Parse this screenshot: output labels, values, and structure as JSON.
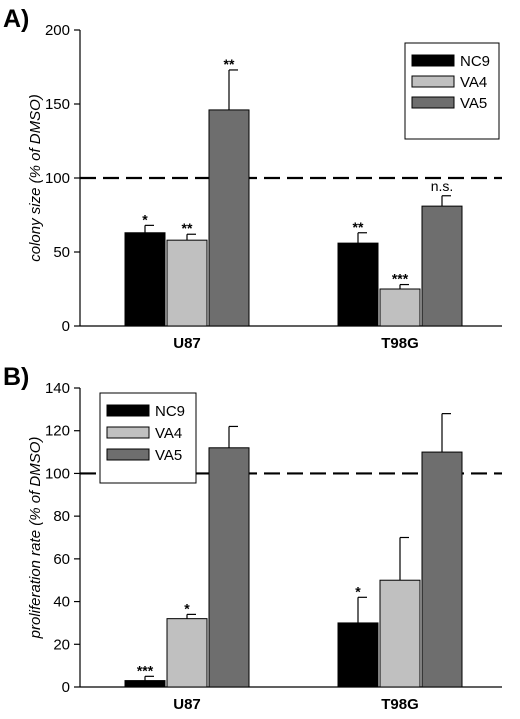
{
  "chart_data": [
    {
      "panel": "A)",
      "type": "bar",
      "categories": [
        "U87",
        "T98G"
      ],
      "ylabel": "colony size (% of DMSO)",
      "ylim": [
        0,
        200
      ],
      "yticks": [
        0,
        50,
        100,
        150,
        200
      ],
      "reference_line": 100,
      "legend_position": "top-right",
      "series": [
        {
          "name": "NC9",
          "color": "#000000",
          "values": [
            63,
            56
          ],
          "errors": [
            5,
            7
          ],
          "significance": [
            "*",
            "**"
          ]
        },
        {
          "name": "VA4",
          "color": "#c0c0c0",
          "values": [
            58,
            25
          ],
          "errors": [
            4,
            3
          ],
          "significance": [
            "**",
            "***"
          ]
        },
        {
          "name": "VA5",
          "color": "#6e6e6e",
          "values": [
            146,
            81
          ],
          "errors": [
            27,
            7
          ],
          "significance": [
            "**",
            "n.s."
          ]
        }
      ]
    },
    {
      "panel": "B)",
      "type": "bar",
      "categories": [
        "U87",
        "T98G"
      ],
      "ylabel": "proliferation rate (% of DMSO)",
      "ylim": [
        0,
        140
      ],
      "yticks": [
        0,
        20,
        40,
        60,
        80,
        100,
        120,
        140
      ],
      "reference_line": 100,
      "legend_position": "top-left",
      "series": [
        {
          "name": "NC9",
          "color": "#000000",
          "values": [
            3,
            30
          ],
          "errors": [
            2,
            12
          ],
          "significance": [
            "***",
            "*"
          ]
        },
        {
          "name": "VA4",
          "color": "#c0c0c0",
          "values": [
            32,
            50
          ],
          "errors": [
            2,
            20
          ],
          "significance": [
            "*",
            ""
          ]
        },
        {
          "name": "VA5",
          "color": "#6e6e6e",
          "values": [
            112,
            110
          ],
          "errors": [
            10,
            18
          ],
          "significance": [
            "",
            ""
          ]
        }
      ]
    }
  ]
}
